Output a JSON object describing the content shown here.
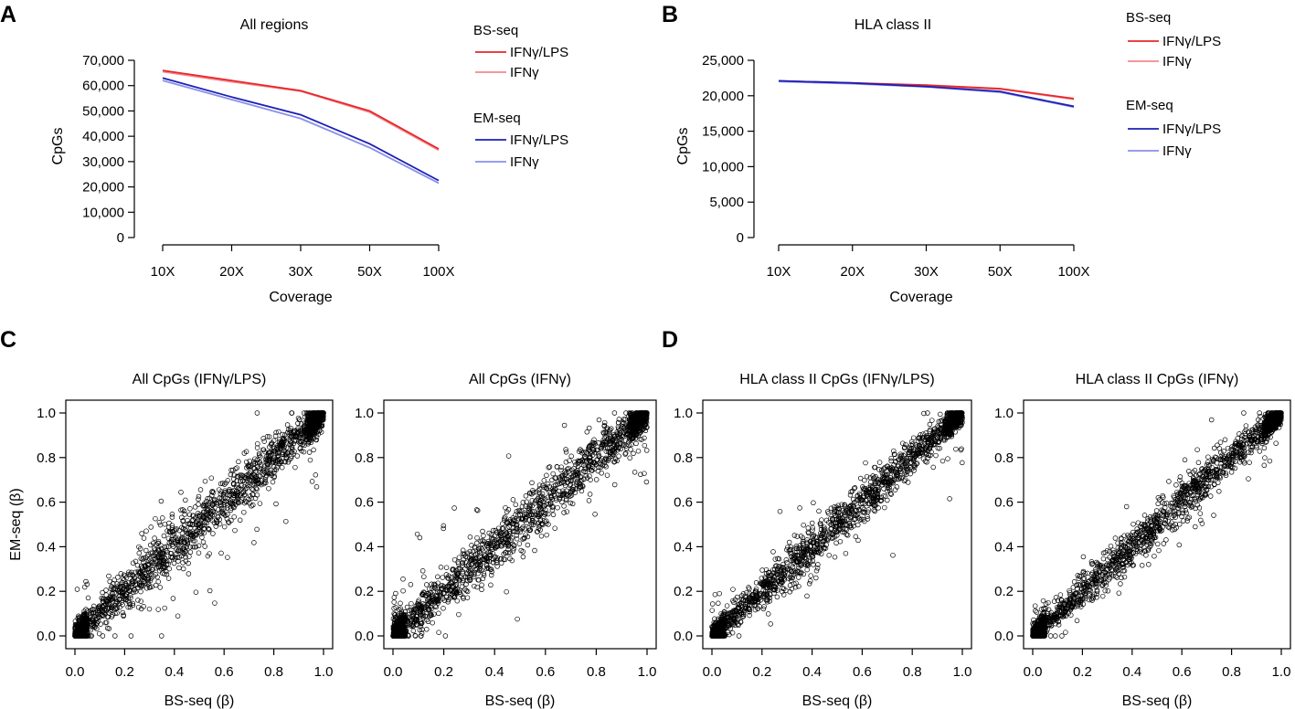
{
  "chart_data": [
    {
      "panel": "A",
      "type": "line",
      "title": "All regions",
      "xlabel": "Coverage",
      "ylabel": "CpGs",
      "categories": [
        "10X",
        "20X",
        "30X",
        "50X",
        "100X"
      ],
      "ylim": [
        0,
        70000
      ],
      "yticks": [
        0,
        10000,
        20000,
        30000,
        40000,
        50000,
        60000,
        70000
      ],
      "ytick_labels": [
        "0",
        "10,000",
        "20,000",
        "30,000",
        "40,000",
        "50,000",
        "60,000",
        "70,000"
      ],
      "legend_groups": [
        {
          "title": "BS-seq",
          "entries": [
            "IFNγ/LPS",
            "IFNγ"
          ]
        },
        {
          "title": "EM-seq",
          "entries": [
            "IFNγ/LPS",
            "IFNγ"
          ]
        }
      ],
      "series": [
        {
          "name": "BS-seq IFNγ/LPS",
          "color": "#e8262b",
          "values": [
            66000,
            62000,
            58000,
            50000,
            35000
          ]
        },
        {
          "name": "BS-seq IFNγ",
          "color": "#f4888b",
          "values": [
            65500,
            61500,
            57800,
            49500,
            34500
          ]
        },
        {
          "name": "EM-seq IFNγ/LPS",
          "color": "#1b1fb5",
          "values": [
            63000,
            55500,
            48500,
            37000,
            22500
          ]
        },
        {
          "name": "EM-seq IFNγ",
          "color": "#8a8fea",
          "values": [
            62000,
            54500,
            47000,
            35500,
            21500
          ]
        }
      ]
    },
    {
      "panel": "B",
      "type": "line",
      "title": "HLA class II",
      "xlabel": "Coverage",
      "ylabel": "CpGs",
      "categories": [
        "10X",
        "20X",
        "30X",
        "50X",
        "100X"
      ],
      "ylim": [
        0,
        25000
      ],
      "yticks": [
        0,
        5000,
        10000,
        15000,
        20000,
        25000
      ],
      "ytick_labels": [
        "0",
        "5,000",
        "10,000",
        "15,000",
        "20,000",
        "25,000"
      ],
      "legend_groups": [
        {
          "title": "BS-seq",
          "entries": [
            "IFNγ/LPS",
            "IFNγ"
          ]
        },
        {
          "title": "EM-seq",
          "entries": [
            "IFNγ/LPS",
            "IFNγ"
          ]
        }
      ],
      "series": [
        {
          "name": "BS-seq IFNγ/LPS",
          "color": "#e8262b",
          "values": [
            22100,
            21800,
            21500,
            21000,
            19600
          ]
        },
        {
          "name": "BS-seq IFNγ",
          "color": "#f4888b",
          "values": [
            22050,
            21750,
            21450,
            20950,
            19500
          ]
        },
        {
          "name": "EM-seq IFNγ/LPS",
          "color": "#1b1fb5",
          "values": [
            22100,
            21800,
            21300,
            20600,
            18500
          ]
        },
        {
          "name": "EM-seq IFNγ",
          "color": "#8a8fea",
          "values": [
            22000,
            21700,
            21250,
            20500,
            18400
          ]
        }
      ]
    },
    {
      "panel": "C",
      "type": "scatter",
      "title": "All CpGs (IFNγ/LPS)",
      "xlabel": "BS-seq (β)",
      "ylabel": "EM-seq (β)",
      "xlim": [
        0,
        1
      ],
      "ylim": [
        0,
        1
      ],
      "ticks": [
        0,
        0.2,
        0.4,
        0.6,
        0.8,
        1.0
      ],
      "tick_labels": [
        "0.0",
        "0.2",
        "0.4",
        "0.6",
        "0.8",
        "1.0"
      ],
      "note": "Dense cloud along y = x; heavy point density near (0,0) and (1,1)",
      "spread": 0.05
    },
    {
      "panel": "C",
      "type": "scatter",
      "title": "All CpGs (IFNγ)",
      "xlabel": "BS-seq (β)",
      "ylabel": "",
      "xlim": [
        0,
        1
      ],
      "ylim": [
        0,
        1
      ],
      "ticks": [
        0,
        0.2,
        0.4,
        0.6,
        0.8,
        1.0
      ],
      "tick_labels": [
        "0.0",
        "0.2",
        "0.4",
        "0.6",
        "0.8",
        "1.0"
      ],
      "note": "Dense cloud along y = x",
      "spread": 0.05
    },
    {
      "panel": "D",
      "type": "scatter",
      "title": "HLA class II CpGs (IFNγ/LPS)",
      "xlabel": "BS-seq (β)",
      "ylabel": "",
      "xlim": [
        0,
        1
      ],
      "ylim": [
        0,
        1
      ],
      "ticks": [
        0,
        0.2,
        0.4,
        0.6,
        0.8,
        1.0
      ],
      "tick_labels": [
        "0.0",
        "0.2",
        "0.4",
        "0.6",
        "0.8",
        "1.0"
      ],
      "note": "Dense cloud along y = x",
      "spread": 0.04
    },
    {
      "panel": "D",
      "type": "scatter",
      "title": "HLA class II CpGs (IFNγ)",
      "xlabel": "BS-seq (β)",
      "ylabel": "",
      "xlim": [
        0,
        1
      ],
      "ylim": [
        0,
        1
      ],
      "ticks": [
        0,
        0.2,
        0.4,
        0.6,
        0.8,
        1.0
      ],
      "tick_labels": [
        "0.0",
        "0.2",
        "0.4",
        "0.6",
        "0.8",
        "1.0"
      ],
      "note": "Dense cloud along y = x",
      "spread": 0.04
    }
  ]
}
